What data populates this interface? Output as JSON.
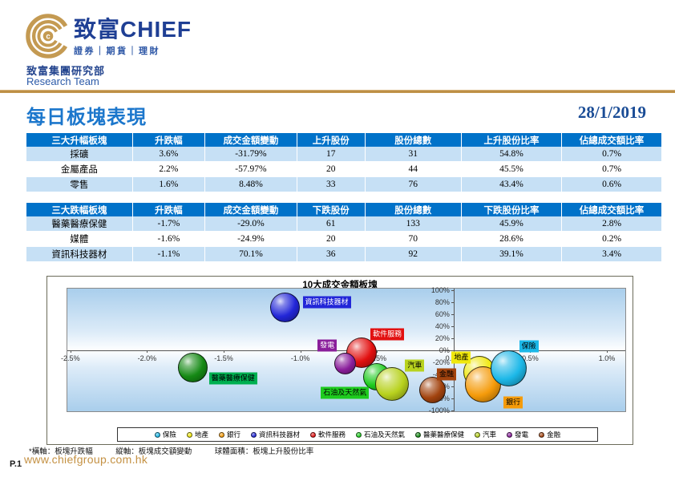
{
  "header": {
    "logo_cn": "致富",
    "logo_en": "CHIEF",
    "logo_tagline": "證券｜期貨｜理財",
    "dept_cn": "致富集團研究部",
    "dept_en": "Research Team",
    "brand_gold": "#C49A52",
    "brand_blue": "#1F3F94"
  },
  "title": {
    "text": "每日板塊表現",
    "date": "28/1/2019"
  },
  "tables": [
    {
      "headers": [
        "三大升幅板塊",
        "升跌幅",
        "成交金額變動",
        "上升股份",
        "股份總數",
        "上升股份比率",
        "佔總成交額比率"
      ],
      "rows": [
        [
          "採礦",
          "3.6%",
          "-31.79%",
          "17",
          "31",
          "54.8%",
          "0.7%"
        ],
        [
          "金屬產品",
          "2.2%",
          "-57.97%",
          "20",
          "44",
          "45.5%",
          "0.7%"
        ],
        [
          "零售",
          "1.6%",
          "8.48%",
          "33",
          "76",
          "43.4%",
          "0.6%"
        ]
      ]
    },
    {
      "headers": [
        "三大跌幅板塊",
        "升跌幅",
        "成交金額變動",
        "下跌股份",
        "股份總數",
        "下跌股份比率",
        "佔總成交額比率"
      ],
      "rows": [
        [
          "醫藥醫療保健",
          "-1.7%",
          "-29.0%",
          "61",
          "133",
          "45.9%",
          "2.8%"
        ],
        [
          "媒體",
          "-1.6%",
          "-24.9%",
          "20",
          "70",
          "28.6%",
          "0.2%"
        ],
        [
          "資訊科技器材",
          "-1.1%",
          "70.1%",
          "36",
          "92",
          "39.1%",
          "3.4%"
        ]
      ]
    }
  ],
  "chart_data": {
    "type": "scatter",
    "subtype": "bubble",
    "title": "10大成交金額板塊",
    "xlabel": "板塊升跌幅",
    "ylabel": "板塊成交額變動",
    "size_meaning": "板塊上升股份比率",
    "x_axis": {
      "min": -2.52,
      "max": 1.12,
      "ticks": [
        -2.5,
        -2.0,
        -1.5,
        -1.0,
        -0.5,
        0.0,
        0.5,
        1.0
      ],
      "tick_labels": [
        "-2.5%",
        "-2.0%",
        "-1.5%",
        "-1.0%",
        "-0.5%",
        "0.0%",
        "0.5%",
        "1.0%"
      ]
    },
    "y_axis": {
      "min": -102,
      "max": 102,
      "ticks": [
        100,
        80,
        60,
        40,
        20,
        0,
        -20,
        -40,
        -60,
        -80,
        -100
      ],
      "tick_labels": [
        "100%",
        "80%",
        "60%",
        "40%",
        "20%",
        "0%",
        "-20%",
        "-40%",
        "-60%",
        "-80%",
        "-100%"
      ]
    },
    "grid": false,
    "legend_position": "bottom",
    "series": [
      {
        "name": "保險",
        "x": 0.36,
        "y": -31,
        "d": 45,
        "z": 10,
        "color": "#1CB8E8",
        "label": {
          "dx": 25,
          "dy": -28,
          "fg": "#000"
        }
      },
      {
        "name": "地產",
        "x": 0.17,
        "y": -37,
        "d": 40,
        "z": 8,
        "color": "#F0E80C",
        "label": {
          "dx": -23,
          "dy": -18,
          "fg": "#000"
        }
      },
      {
        "name": "銀行",
        "x": 0.19,
        "y": -57,
        "d": 45,
        "z": 9,
        "color": "#F59B0A",
        "label": {
          "dx": 38,
          "dy": 23,
          "fg": "#000"
        }
      },
      {
        "name": "資訊科技器材",
        "x": -1.1,
        "y": 70.1,
        "d": 37,
        "z": 2,
        "color": "#2226D8",
        "label": {
          "dx": 52,
          "dy": -7,
          "fg": "#fff"
        }
      },
      {
        "name": "軟件服務",
        "x": -0.6,
        "y": -4,
        "d": 38,
        "z": 3,
        "color": "#E21010",
        "label": {
          "dx": 32,
          "dy": -23,
          "fg": "#fff"
        }
      },
      {
        "name": "石油及天然氣",
        "x": -0.5,
        "y": -44,
        "d": 34,
        "z": 5,
        "color": "#1ECC1E",
        "label": {
          "dx": -40,
          "dy": 20,
          "fg": "#000"
        }
      },
      {
        "name": "醫藥醫療保健",
        "x": -1.7,
        "y": -29,
        "d": 37,
        "z": 1,
        "color": "#158A15",
        "label": {
          "dx": 50,
          "dy": 14,
          "fg": "#000",
          "bg": "#00B050"
        }
      },
      {
        "name": "汽車",
        "x": -0.4,
        "y": -56,
        "d": 42,
        "z": 6,
        "color": "#B8D21E",
        "label": {
          "dx": 28,
          "dy": -23,
          "fg": "#000"
        }
      },
      {
        "name": "發電",
        "x": -0.71,
        "y": -23,
        "d": 27,
        "z": 4,
        "color": "#8A1E9B",
        "label": {
          "dx": -22,
          "dy": -23,
          "fg": "#fff"
        }
      },
      {
        "name": "金融",
        "x": -0.14,
        "y": -67,
        "d": 33,
        "z": 7,
        "color": "#A2430E",
        "label": {
          "dx": 18,
          "dy": -20,
          "fg": "#000"
        }
      }
    ]
  },
  "footnote": {
    "text": "*橫軸：板塊升跌幅　　　縱軸：板塊成交額變動　　　球體面積：板塊上升股份比率"
  },
  "footer": {
    "page": "P.1",
    "url": "www.chiefgroup.com.hk"
  }
}
